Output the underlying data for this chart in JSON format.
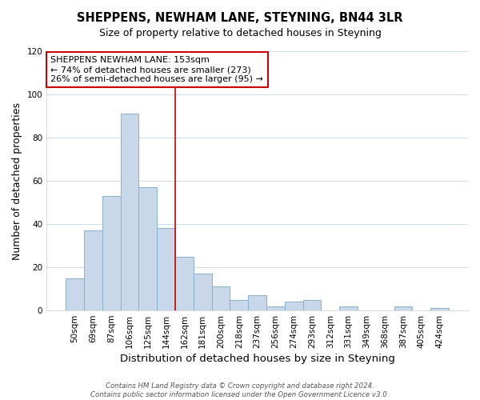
{
  "title": "SHEPPENS, NEWHAM LANE, STEYNING, BN44 3LR",
  "subtitle": "Size of property relative to detached houses in Steyning",
  "xlabel": "Distribution of detached houses by size in Steyning",
  "ylabel": "Number of detached properties",
  "bar_color": "#c8d8ea",
  "bar_edge_color": "#8ab0cc",
  "categories": [
    "50sqm",
    "69sqm",
    "87sqm",
    "106sqm",
    "125sqm",
    "144sqm",
    "162sqm",
    "181sqm",
    "200sqm",
    "218sqm",
    "237sqm",
    "256sqm",
    "274sqm",
    "293sqm",
    "312sqm",
    "331sqm",
    "349sqm",
    "368sqm",
    "387sqm",
    "405sqm",
    "424sqm"
  ],
  "values": [
    15,
    37,
    53,
    91,
    57,
    38,
    25,
    17,
    11,
    5,
    7,
    2,
    4,
    5,
    0,
    2,
    0,
    0,
    2,
    0,
    1
  ],
  "ylim": [
    0,
    120
  ],
  "yticks": [
    0,
    20,
    40,
    60,
    80,
    100,
    120
  ],
  "vline_x": 5.5,
  "vline_color": "#cc0000",
  "annotation_title": "SHEPPENS NEWHAM LANE: 153sqm",
  "annotation_line1": "← 74% of detached houses are smaller (273)",
  "annotation_line2": "26% of semi-detached houses are larger (95) →",
  "annotation_box_facecolor": "#ffffff",
  "annotation_box_edge": "#cc0000",
  "footer1": "Contains HM Land Registry data © Crown copyright and database right 2024.",
  "footer2": "Contains public sector information licensed under the Open Government Licence v3.0.",
  "background_color": "#ffffff",
  "plot_background": "#ffffff",
  "grid_color": "#ccddee"
}
